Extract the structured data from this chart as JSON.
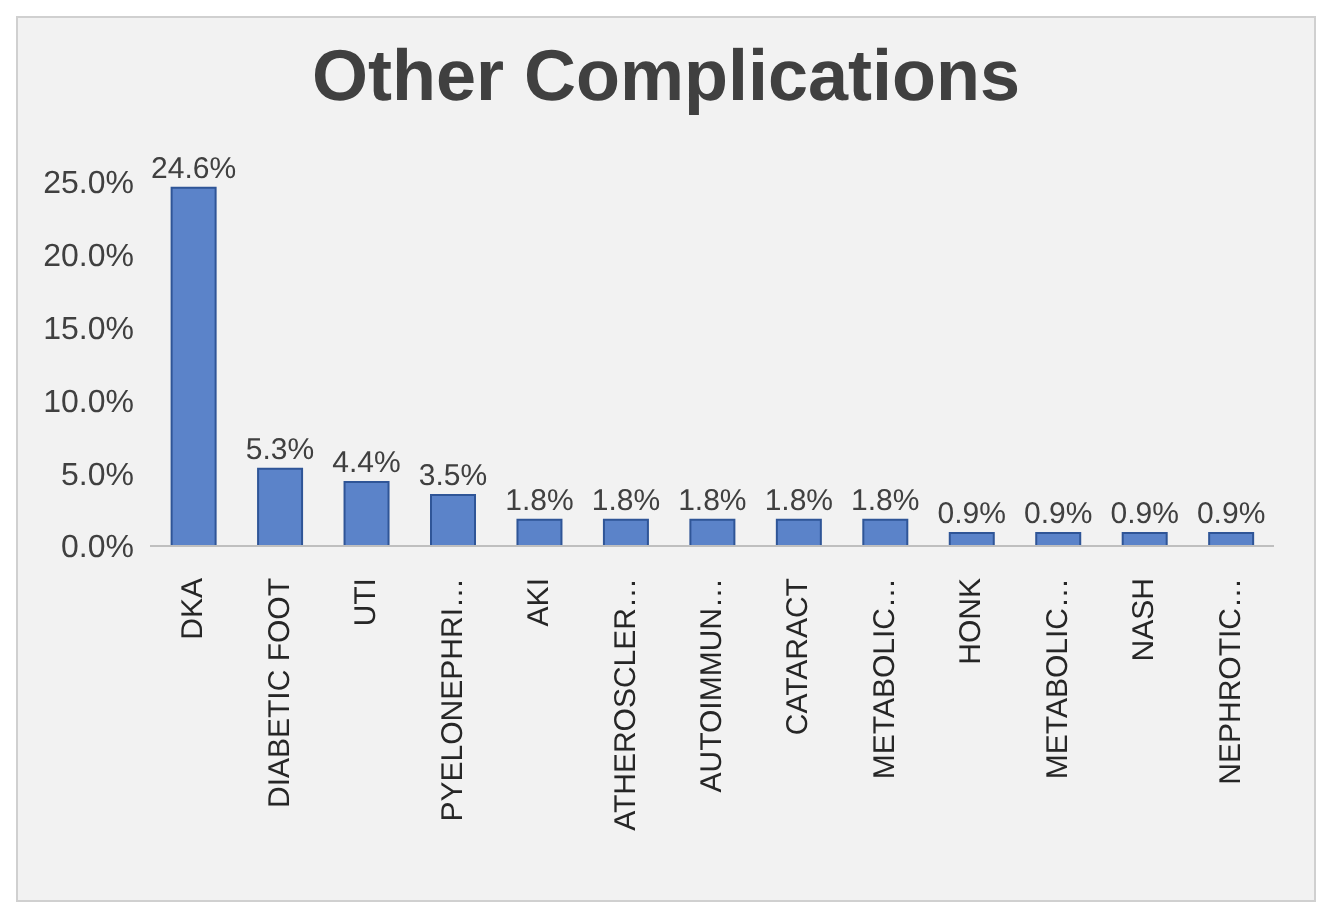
{
  "chart_data": {
    "type": "bar",
    "title": "Other Complications",
    "categories": [
      "DKA",
      "DIABETIC FOOT",
      "UTI",
      "PYELONEPHRI…",
      "AKI",
      "ATHEROSCLER…",
      "AUTOIMMUN…",
      "CATARACT",
      "METABOLIC…",
      "HONK",
      "METABOLIC…",
      "NASH",
      "NEPHROTIC…"
    ],
    "values": [
      24.6,
      5.3,
      4.4,
      3.5,
      1.8,
      1.8,
      1.8,
      1.8,
      1.8,
      0.9,
      0.9,
      0.9,
      0.9
    ],
    "value_labels": [
      "24.6%",
      "5.3%",
      "4.4%",
      "3.5%",
      "1.8%",
      "1.8%",
      "1.8%",
      "1.8%",
      "1.8%",
      "0.9%",
      "0.9%",
      "0.9%",
      "0.9%"
    ],
    "color": "#5b83c9",
    "ylim": [
      0,
      25
    ],
    "yticks": [
      {
        "value": 0,
        "label": "0.0%"
      },
      {
        "value": 5,
        "label": "5.0%"
      },
      {
        "value": 10,
        "label": "10.0%"
      },
      {
        "value": 15,
        "label": "15.0%"
      },
      {
        "value": 20,
        "label": "20.0%"
      },
      {
        "value": 25,
        "label": "25.0%"
      }
    ],
    "grid": false,
    "legend": false
  }
}
